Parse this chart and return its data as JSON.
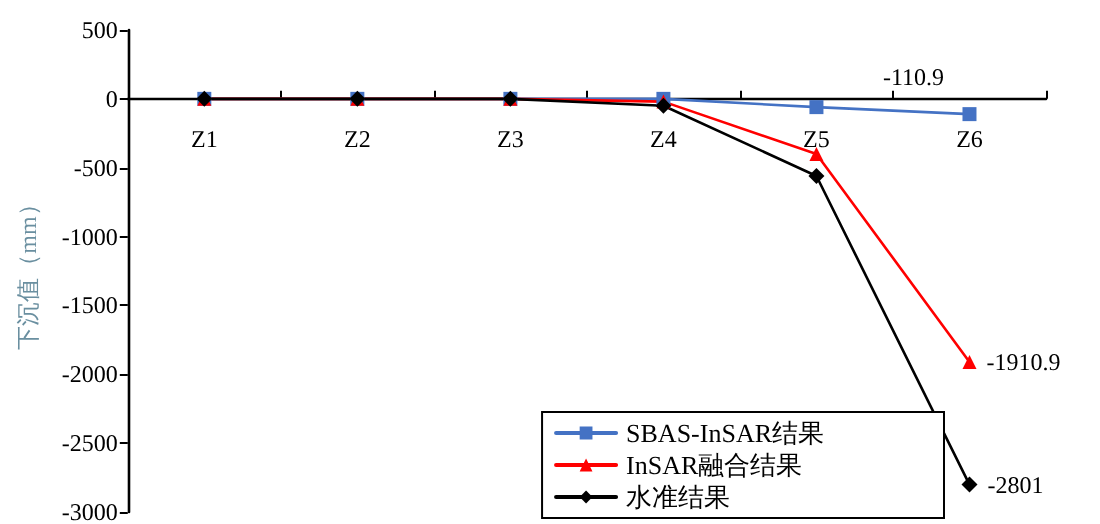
{
  "chart_data": {
    "type": "line",
    "ylabel": "下沉值（mm）",
    "categories": [
      "Z1",
      "Z2",
      "Z3",
      "Z4",
      "Z5",
      "Z6"
    ],
    "series": [
      {
        "name": "SBAS-InSAR结果",
        "color": "#4472c4",
        "marker": "square",
        "values": [
          0,
          0,
          0,
          0,
          -60,
          -110.9
        ],
        "value_labels": [
          null,
          null,
          null,
          null,
          null,
          "-110.9"
        ]
      },
      {
        "name": "InSAR融合结果",
        "color": "#ff0000",
        "marker": "triangle",
        "values": [
          0,
          0,
          0,
          -20,
          -400,
          -1910.9
        ],
        "value_labels": [
          null,
          null,
          null,
          null,
          null,
          "-1910.9"
        ]
      },
      {
        "name": "水准结果",
        "color": "#000000",
        "marker": "diamond",
        "values": [
          0,
          0,
          0,
          -50,
          -560,
          -2801
        ],
        "value_labels": [
          null,
          null,
          null,
          null,
          null,
          "-2801"
        ]
      }
    ],
    "ylim": [
      -3000,
      500
    ],
    "yticks": [
      -3000,
      -2500,
      -2000,
      -1500,
      -1000,
      -500,
      0,
      500
    ],
    "legend": "bottom right",
    "line_style": "solid"
  }
}
